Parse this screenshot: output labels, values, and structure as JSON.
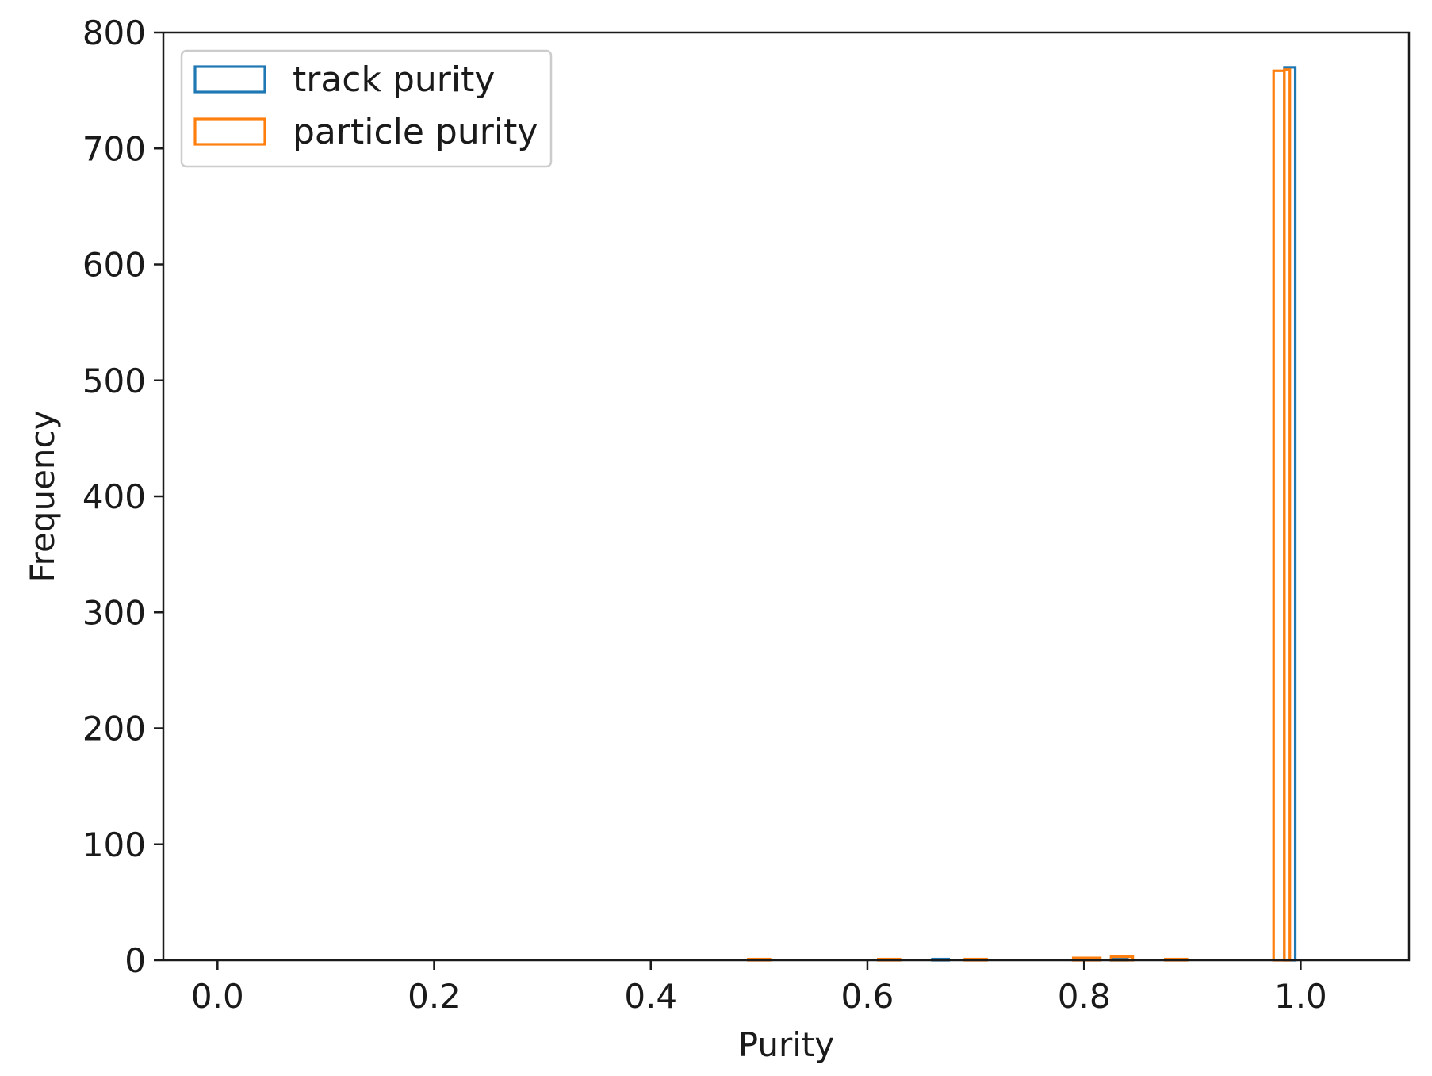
{
  "chart_data": {
    "type": "histogram",
    "title": "",
    "xlabel": "Purity",
    "ylabel": "Frequency",
    "xlim": [
      -0.05,
      1.1
    ],
    "ylim": [
      0,
      800
    ],
    "xticks": [
      0.0,
      0.2,
      0.4,
      0.6,
      0.8,
      1.0
    ],
    "xtick_labels": [
      "0.0",
      "0.2",
      "0.4",
      "0.6",
      "0.8",
      "1.0"
    ],
    "yticks": [
      0,
      100,
      200,
      300,
      400,
      500,
      600,
      700,
      800
    ],
    "ytick_labels": [
      "0",
      "100",
      "200",
      "300",
      "400",
      "500",
      "600",
      "700",
      "800"
    ],
    "grid": false,
    "legend_position": "top-left",
    "series": [
      {
        "name": "track purity",
        "color": "#1f77b4",
        "bins": [
          [
            0.66,
            0.675,
            1
          ],
          [
            0.825,
            0.84,
            2
          ],
          [
            0.985,
            0.995,
            770
          ]
        ]
      },
      {
        "name": "particle purity",
        "color": "#ff7f0e",
        "bins": [
          [
            0.49,
            0.51,
            1
          ],
          [
            0.61,
            0.63,
            1
          ],
          [
            0.69,
            0.71,
            1
          ],
          [
            0.79,
            0.815,
            2
          ],
          [
            0.825,
            0.845,
            3
          ],
          [
            0.875,
            0.895,
            1
          ],
          [
            0.975,
            0.985,
            767
          ],
          [
            0.985,
            0.99,
            768
          ]
        ]
      }
    ],
    "legend": {
      "entries": [
        "track purity",
        "particle purity"
      ]
    }
  }
}
